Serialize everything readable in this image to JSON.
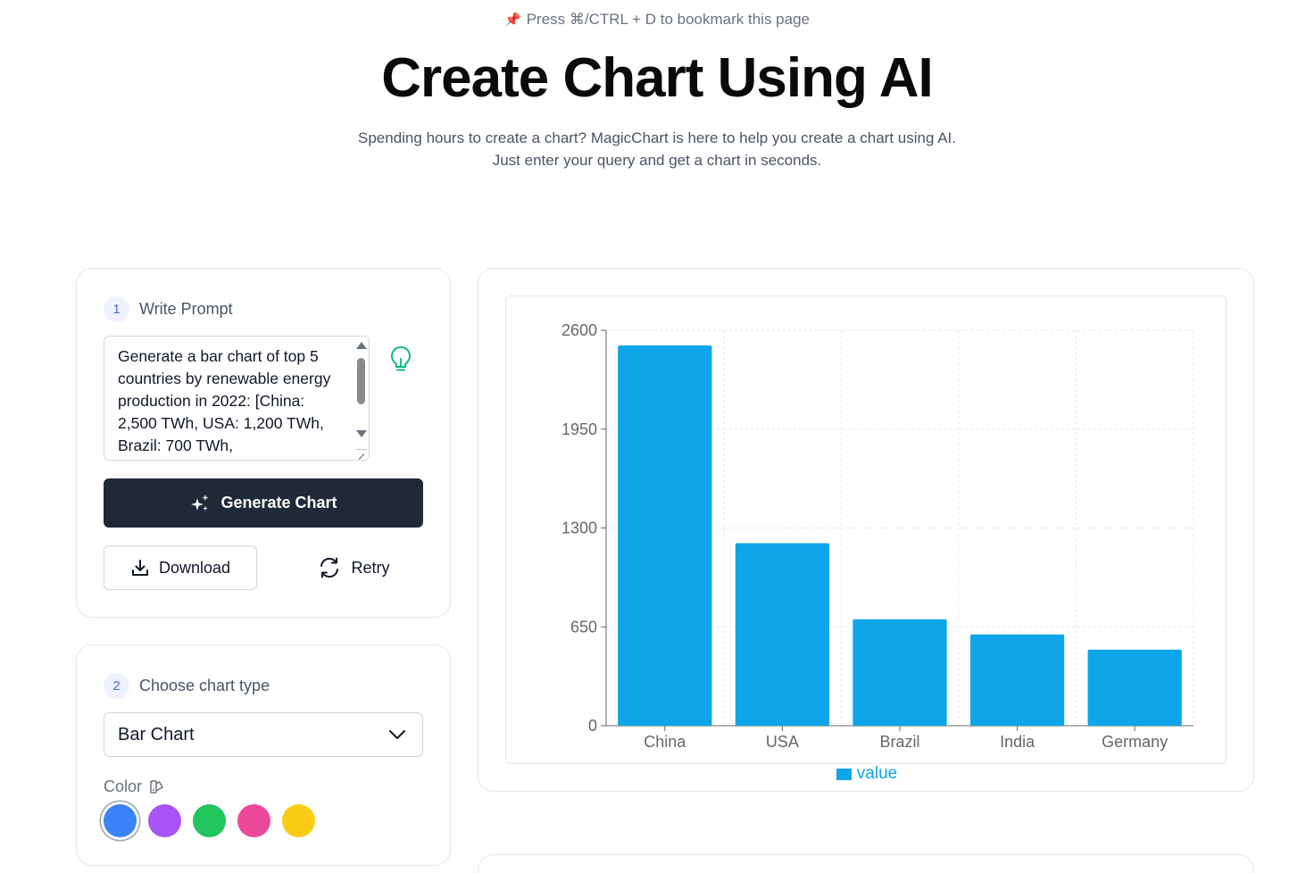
{
  "header": {
    "bookmark_tip": "Press ⌘/CTRL + D to bookmark this page",
    "title": "Create Chart Using AI",
    "subtitle_line1": "Spending hours to create a chart? MagicChart is here to help you create a chart using AI.",
    "subtitle_line2": "Just enter your query and get a chart in seconds."
  },
  "prompt_card": {
    "step_number": "1",
    "step_label": "Write Prompt",
    "prompt_value": "Generate a bar chart of top 5 countries by renewable energy production in 2022: [China: 2,500 TWh, USA: 1,200 TWh, Brazil: 700 TWh,",
    "generate_label": "Generate Chart",
    "download_label": "Download",
    "retry_label": "Retry"
  },
  "type_card": {
    "step_number": "2",
    "step_label": "Choose chart type",
    "selected_type": "Bar Chart",
    "color_label": "Color",
    "colors": [
      "#3b82f6",
      "#a855f7",
      "#22c55e",
      "#ec4899",
      "#facc15"
    ],
    "selected_color": "#3b82f6"
  },
  "chart_data": {
    "type": "bar",
    "categories": [
      "China",
      "USA",
      "Brazil",
      "India",
      "Germany"
    ],
    "series": [
      {
        "name": "value",
        "values": [
          2500,
          1200,
          700,
          600,
          500
        ],
        "color": "#0ea5e9"
      }
    ],
    "yticks": [
      0,
      650,
      1300,
      1950,
      2600
    ],
    "ylim": [
      0,
      2600
    ],
    "grid": true,
    "legend": "bottom-center"
  }
}
